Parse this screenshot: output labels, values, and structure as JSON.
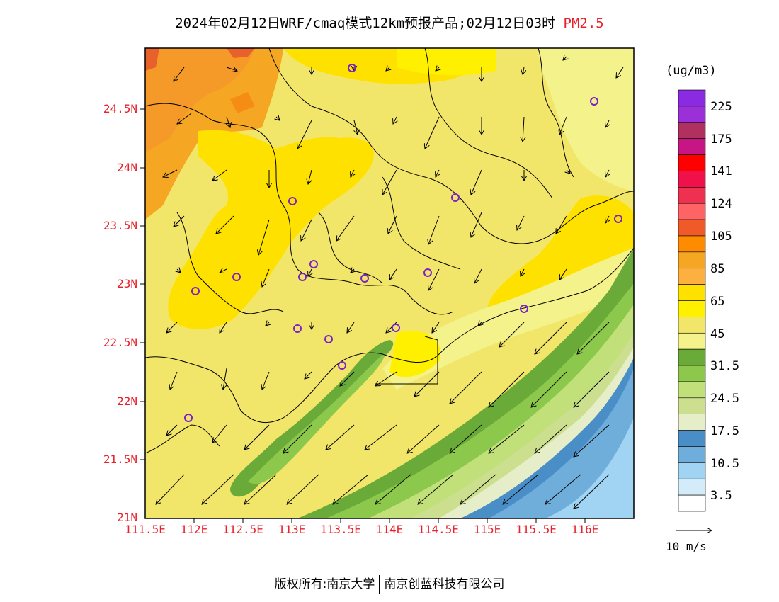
{
  "title": {
    "prefix": "2024年02月12日WRF/cmaq模式12km预报产品;02月12日03时",
    "pollutant": "PM2.5"
  },
  "map": {
    "lat_labels": [
      "24.5N",
      "24N",
      "23.5N",
      "23N",
      "22.5N",
      "22N",
      "21.5N",
      "21N"
    ],
    "lon_labels": [
      "111.5E",
      "112E",
      "112.5E",
      "113E",
      "113.5E",
      "114E",
      "114.5E",
      "115E",
      "115.5E",
      "116E"
    ],
    "lon_range": [
      111.5,
      116.5
    ],
    "lat_range": [
      21.0,
      25.0
    ],
    "station_color": "#7b22c9",
    "coast_color": "#000000"
  },
  "legend": {
    "unit": "(ug/m3)",
    "colors_top_to_bottom": [
      "#8a2be2",
      "#9b30d8",
      "#b03060",
      "#c71585",
      "#ff0000",
      "#f0104a",
      "#f03050",
      "#ff6464",
      "#f05a28",
      "#ff8c00",
      "#f5a623",
      "#fbb040",
      "#ffe100",
      "#fff000",
      "#f2e66a",
      "#f4f28a",
      "#6aaa38",
      "#8cc84b",
      "#c2e07a",
      "#ccdf8e",
      "#e6edc9",
      "#4a8ec8",
      "#6faedb",
      "#a0d4f2",
      "#d4ecfa",
      "#ffffff"
    ],
    "labels": [
      "225",
      "175",
      "141",
      "124",
      "105",
      "85",
      "65",
      "45",
      "31.5",
      "24.5",
      "17.5",
      "10.5",
      "3.5"
    ]
  },
  "wind": {
    "reference_label": "10 m/s"
  },
  "footer": {
    "left": "版权所有:南京大学",
    "right": "南京创蓝科技有限公司"
  }
}
